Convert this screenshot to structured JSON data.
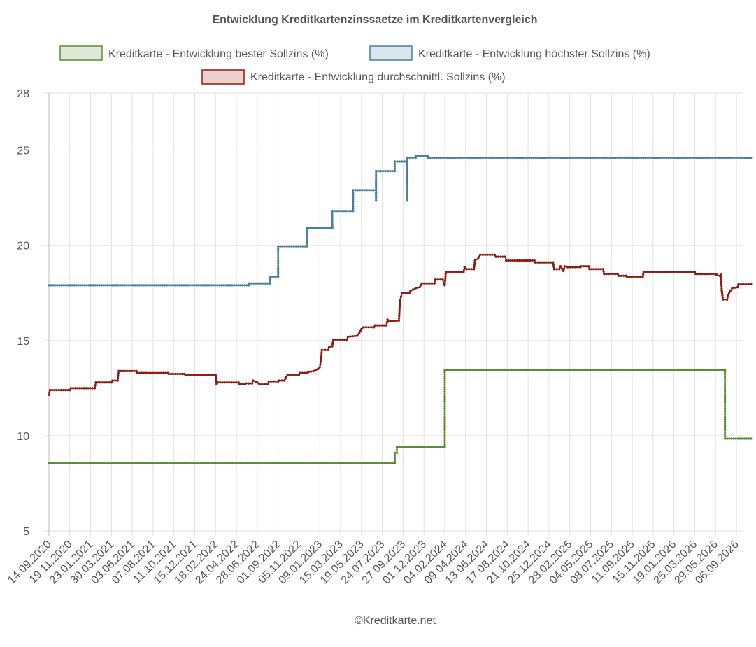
{
  "chart_data": {
    "type": "line",
    "title": "Entwicklung Kreditkartenzinssaetze im Kreditkartenvergleich",
    "xlabel": "",
    "ylabel": "",
    "ylim": [
      5,
      28
    ],
    "y_ticks": [
      5,
      10,
      15,
      20,
      25,
      28
    ],
    "x_ticks": [
      "14.09.2020",
      "19.11.2020",
      "23.01.2021",
      "30.03.2021",
      "03.06.2021",
      "07.08.2021",
      "11.10.2021",
      "15.12.2021",
      "18.02.2022",
      "24.04.2022",
      "28.06.2022",
      "01.09.2022",
      "05.11.2022",
      "09.01.2023",
      "15.03.2023",
      "19.05.2023",
      "24.07.2023",
      "27.09.2023",
      "01.12.2023",
      "04.02.2024",
      "09.04.2024",
      "13.06.2024",
      "17.08.2024",
      "21.10.2024",
      "25.12.2024",
      "28.02.2025",
      "04.05.2025",
      "08.07.2025",
      "11.09.2025",
      "15.11.2025",
      "19.01.2026",
      "25.03.2026",
      "29.05.2026",
      "06.09.2026"
    ],
    "grid": true,
    "legend_position": "top",
    "series": [
      {
        "name": "Kreditkarte - Entwicklung bester Sollzins  (%)",
        "color": "#5a8a32",
        "fill": "#dfe8d6",
        "points": [
          [
            0,
            8.55
          ],
          [
            16.6,
            8.55
          ],
          [
            16.6,
            9.1
          ],
          [
            16.7,
            9.1
          ],
          [
            16.7,
            9.4
          ],
          [
            19.0,
            9.4
          ],
          [
            19.0,
            13.45
          ],
          [
            32.45,
            13.45
          ],
          [
            32.45,
            9.85
          ],
          [
            33.7,
            9.85
          ]
        ]
      },
      {
        "name": "Kreditkarte - Entwicklung höchster Sollzins (%)",
        "color": "#4a7f9c",
        "fill": "#d9e6ed",
        "points": [
          [
            0,
            17.9
          ],
          [
            9.6,
            17.9
          ],
          [
            9.6,
            18.0
          ],
          [
            10.6,
            18.0
          ],
          [
            10.6,
            18.35
          ],
          [
            11.0,
            18.35
          ],
          [
            11.0,
            19.95
          ],
          [
            12.4,
            19.95
          ],
          [
            12.4,
            20.9
          ],
          [
            13.6,
            20.9
          ],
          [
            13.6,
            21.8
          ],
          [
            14.6,
            21.8
          ],
          [
            14.6,
            22.9
          ],
          [
            15.7,
            22.9
          ],
          [
            15.7,
            22.35
          ],
          [
            15.7,
            23.9
          ],
          [
            16.6,
            23.9
          ],
          [
            16.6,
            24.4
          ],
          [
            17.2,
            24.4
          ],
          [
            17.2,
            22.35
          ],
          [
            17.2,
            24.6
          ],
          [
            17.6,
            24.6
          ],
          [
            17.6,
            24.7
          ],
          [
            18.2,
            24.7
          ],
          [
            18.2,
            24.6
          ],
          [
            33.7,
            24.6
          ]
        ]
      },
      {
        "name": "Kreditkarte - Entwicklung durchschnittl. Sollzins (%)",
        "color": "#8b1c14",
        "fill": "#ecd2cf",
        "points": [
          [
            0,
            12.15
          ],
          [
            0.05,
            12.4
          ],
          [
            1.0,
            12.4
          ],
          [
            1.05,
            12.5
          ],
          [
            2.2,
            12.5
          ],
          [
            2.25,
            12.8
          ],
          [
            3.0,
            12.8
          ],
          [
            3.05,
            12.9
          ],
          [
            3.3,
            12.9
          ],
          [
            3.35,
            13.4
          ],
          [
            4.2,
            13.4
          ],
          [
            4.25,
            13.3
          ],
          [
            5.7,
            13.3
          ],
          [
            5.75,
            13.25
          ],
          [
            6.5,
            13.25
          ],
          [
            6.55,
            13.2
          ],
          [
            8.0,
            13.2
          ],
          [
            8.05,
            12.7
          ],
          [
            8.1,
            12.8
          ],
          [
            9.1,
            12.8
          ],
          [
            9.15,
            12.7
          ],
          [
            9.4,
            12.7
          ],
          [
            9.45,
            12.75
          ],
          [
            9.75,
            12.75
          ],
          [
            9.8,
            12.9
          ],
          [
            10.0,
            12.8
          ],
          [
            10.1,
            12.7
          ],
          [
            10.5,
            12.7
          ],
          [
            10.55,
            12.85
          ],
          [
            11.0,
            12.85
          ],
          [
            11.05,
            12.9
          ],
          [
            11.3,
            12.9
          ],
          [
            11.35,
            13.0
          ],
          [
            11.45,
            13.2
          ],
          [
            12.0,
            13.2
          ],
          [
            12.05,
            13.3
          ],
          [
            12.4,
            13.3
          ],
          [
            12.45,
            13.35
          ],
          [
            12.7,
            13.4
          ],
          [
            12.9,
            13.5
          ],
          [
            13.0,
            13.6
          ],
          [
            13.05,
            13.9
          ],
          [
            13.1,
            14.5
          ],
          [
            13.4,
            14.5
          ],
          [
            13.45,
            14.65
          ],
          [
            13.6,
            14.7
          ],
          [
            13.65,
            15.05
          ],
          [
            14.3,
            15.05
          ],
          [
            14.35,
            15.2
          ],
          [
            14.8,
            15.25
          ],
          [
            14.9,
            15.4
          ],
          [
            15.0,
            15.6
          ],
          [
            15.1,
            15.7
          ],
          [
            15.6,
            15.7
          ],
          [
            15.65,
            15.8
          ],
          [
            16.2,
            15.8
          ],
          [
            16.25,
            16.1
          ],
          [
            16.3,
            16.0
          ],
          [
            16.8,
            16.05
          ],
          [
            16.85,
            17.1
          ],
          [
            16.9,
            17.3
          ],
          [
            16.95,
            17.5
          ],
          [
            17.3,
            17.5
          ],
          [
            17.35,
            17.6
          ],
          [
            17.6,
            17.75
          ],
          [
            17.8,
            17.8
          ],
          [
            17.9,
            18.0
          ],
          [
            18.5,
            18.0
          ],
          [
            18.55,
            18.2
          ],
          [
            18.9,
            18.2
          ],
          [
            18.95,
            18.0
          ],
          [
            19.0,
            17.9
          ],
          [
            19.05,
            18.6
          ],
          [
            19.9,
            18.6
          ],
          [
            19.95,
            18.85
          ],
          [
            20.05,
            18.75
          ],
          [
            20.4,
            18.75
          ],
          [
            20.45,
            19.2
          ],
          [
            20.6,
            19.3
          ],
          [
            20.7,
            19.5
          ],
          [
            21.4,
            19.5
          ],
          [
            21.45,
            19.4
          ],
          [
            21.9,
            19.4
          ],
          [
            21.95,
            19.2
          ],
          [
            23.3,
            19.2
          ],
          [
            23.35,
            19.1
          ],
          [
            24.2,
            19.1
          ],
          [
            24.25,
            18.75
          ],
          [
            24.5,
            18.75
          ],
          [
            24.55,
            18.9
          ],
          [
            24.7,
            18.65
          ],
          [
            24.75,
            18.9
          ],
          [
            24.9,
            18.85
          ],
          [
            25.5,
            18.85
          ],
          [
            25.55,
            18.9
          ],
          [
            25.9,
            18.9
          ],
          [
            25.95,
            18.75
          ],
          [
            26.6,
            18.75
          ],
          [
            26.65,
            18.5
          ],
          [
            27.3,
            18.5
          ],
          [
            27.35,
            18.4
          ],
          [
            27.7,
            18.4
          ],
          [
            27.75,
            18.35
          ],
          [
            28.5,
            18.35
          ],
          [
            28.55,
            18.6
          ],
          [
            31.0,
            18.6
          ],
          [
            31.05,
            18.5
          ],
          [
            32.0,
            18.5
          ],
          [
            32.05,
            18.45
          ],
          [
            32.2,
            18.4
          ],
          [
            32.25,
            18.45
          ],
          [
            32.3,
            17.6
          ],
          [
            32.35,
            17.15
          ],
          [
            32.55,
            17.15
          ],
          [
            32.6,
            17.4
          ],
          [
            32.7,
            17.6
          ],
          [
            32.8,
            17.75
          ],
          [
            33.05,
            17.8
          ],
          [
            33.1,
            17.95
          ],
          [
            33.7,
            17.95
          ]
        ]
      }
    ]
  },
  "footer": {
    "credit": "©Kreditkarte.net"
  }
}
